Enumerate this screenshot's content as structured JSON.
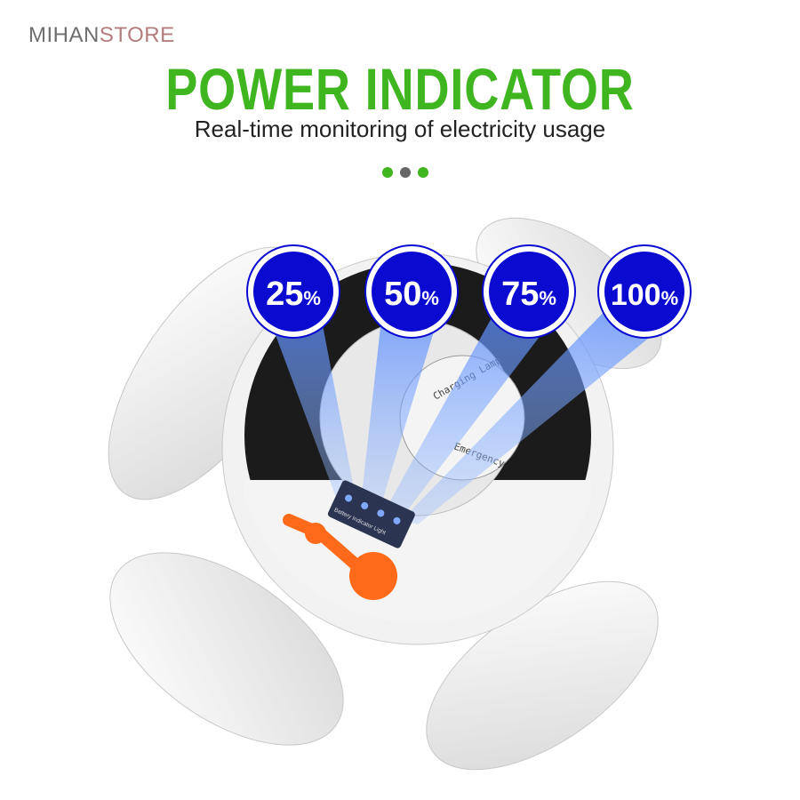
{
  "logo": {
    "part1": "MIHAN",
    "part2": "STORE"
  },
  "header": {
    "title": "POWER INDICATOR",
    "subtitle": "Real-time monitoring of electricity usage"
  },
  "pager_dots": [
    {
      "color": "#3fb51f",
      "active": false
    },
    {
      "color": "#666666",
      "active": true
    },
    {
      "color": "#3fb51f",
      "active": false
    }
  ],
  "indicators": [
    {
      "value": "25",
      "unit": "%"
    },
    {
      "value": "50",
      "unit": "%"
    },
    {
      "value": "75",
      "unit": "%"
    },
    {
      "value": "100",
      "unit": "%"
    }
  ],
  "product_labels": {
    "lamp_text_1": "Charging Lamp",
    "lamp_text_2": "Emergency",
    "panel_text": "Battery Indicator Light"
  },
  "colors": {
    "title": "#3fb51f",
    "indicator_fill": "#0a0ad0",
    "switch": "#ff6a1a"
  }
}
